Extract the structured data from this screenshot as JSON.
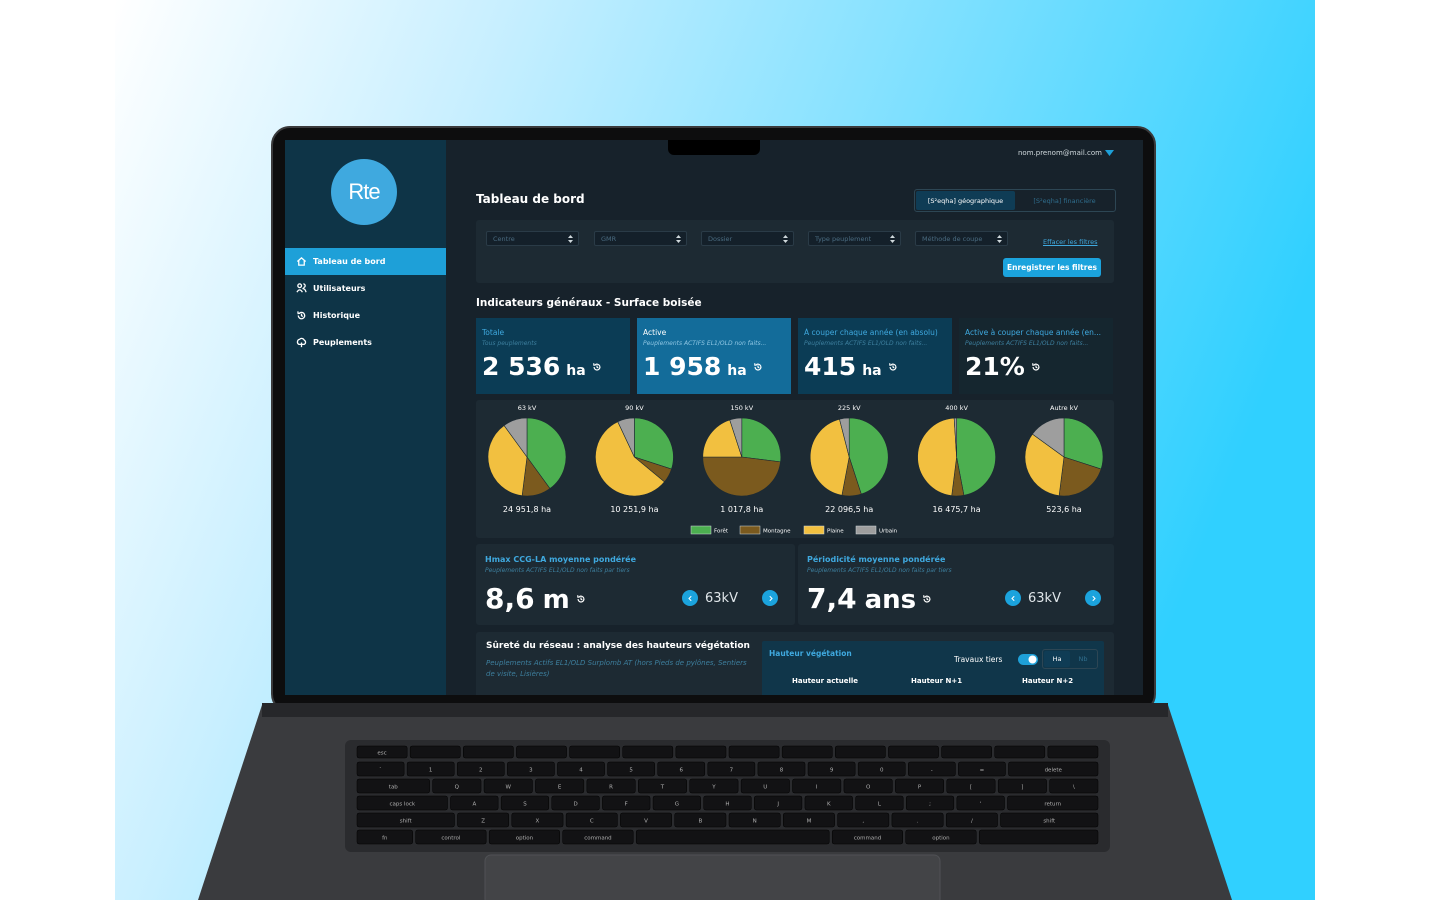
{
  "topbar": {
    "user_email": "nom.prenom@mail.com"
  },
  "sidebar": {
    "logo": "Rte",
    "nav": [
      {
        "label": "Tableau de bord",
        "active": true
      },
      {
        "label": "Utilisateurs",
        "active": false
      },
      {
        "label": "Historique",
        "active": false
      },
      {
        "label": "Peuplements",
        "active": false
      }
    ]
  },
  "header": {
    "title": "Tableau de bord",
    "view_toggle": [
      {
        "label": "[S²eqha] géographique",
        "active": true
      },
      {
        "label": "[S²eqha] financière",
        "active": false
      }
    ]
  },
  "filters": {
    "dropdowns": [
      "Centre",
      "GMR",
      "Dossier",
      "Type peuplement",
      "Méthode de coupe"
    ],
    "clear": "Effacer les filtres",
    "save": "Enregistrer les filtres"
  },
  "indicators": {
    "title": "Indicateurs généraux - Surface boisée",
    "cards": [
      {
        "title": "Totale",
        "subtitle": "Tous peuplements",
        "value": "2 536",
        "unit": "ha",
        "color": "#0b3c55"
      },
      {
        "title": "Active",
        "subtitle": "Peuplements ACTIFS EL1/OLD non faits...",
        "value": "1 958",
        "unit": "ha",
        "color": "#136c9a"
      },
      {
        "title": "À couper chaque année (en absolu)",
        "subtitle": "Peuplements ACTIFS EL1/OLD non faits...",
        "value": "415",
        "unit": "ha",
        "color": "#0b3c55"
      },
      {
        "title": "Active à couper chaque année (en...",
        "subtitle": "Peuplements ACTIFS EL1/OLD non faits...",
        "value": "21%",
        "color": "#15262f"
      }
    ]
  },
  "pies": {
    "legend": [
      {
        "name": "Forêt",
        "color": "#4caf50"
      },
      {
        "name": "Montagne",
        "color": "#7b5a1e"
      },
      {
        "name": "Plaine",
        "color": "#f2c040"
      },
      {
        "name": "Urbain",
        "color": "#9e9e9e"
      }
    ],
    "charts": [
      {
        "label": "63 kV",
        "total": "24 951,8 ha",
        "values": [
          40,
          12,
          38,
          10
        ]
      },
      {
        "label": "90 kV",
        "total": "10 251,9 ha",
        "values": [
          30,
          6,
          57,
          7
        ]
      },
      {
        "label": "150 kV",
        "total": "1 017,8 ha",
        "values": [
          27,
          48,
          20,
          5
        ]
      },
      {
        "label": "225 kV",
        "total": "22 096,5 ha",
        "values": [
          45,
          8,
          43,
          4
        ]
      },
      {
        "label": "400 kV",
        "total": "16 475,7 ha",
        "values": [
          47,
          5,
          47,
          1
        ]
      },
      {
        "label": "Autre kV",
        "total": "523,6 ha",
        "values": [
          30,
          22,
          33,
          15
        ]
      }
    ]
  },
  "metrics": [
    {
      "title": "Hmax CCG-LA moyenne pondérée",
      "subtitle": "Peuplements ACTIFS EL1/OLD non faits par tiers",
      "value": "8,6",
      "unit": "m",
      "selector": "63kV"
    },
    {
      "title": "Périodicité moyenne pondérée",
      "subtitle": "Peuplements ACTIFS EL1/OLD non faits par tiers",
      "value": "7,4",
      "unit": "ans",
      "selector": "63kV"
    }
  ],
  "safety": {
    "title": "Sûreté du réseau : analyse des hauteurs végétation",
    "subtitle": "Peuplements Actifs EL1/OLD Surplomb AT (hors Pieds de pylônes, Sentiers de visite, Lisières)",
    "panel": {
      "title": "Hauteur végétation",
      "switch": "Travaux tiers",
      "toggle": [
        "Ha",
        "Nb"
      ],
      "columns": [
        "Hauteur actuelle",
        "Hauteur N+1",
        "Hauteur N+2"
      ]
    }
  },
  "keyboard": {
    "esc": "esc",
    "rows": [
      [
        "`",
        "1",
        "2",
        "3",
        "4",
        "5",
        "6",
        "7",
        "8",
        "9",
        "0",
        "-",
        "=",
        "delete"
      ],
      [
        "tab",
        "Q",
        "W",
        "E",
        "R",
        "T",
        "Y",
        "U",
        "I",
        "O",
        "P",
        "[",
        "]",
        "\\"
      ],
      [
        "caps lock",
        "A",
        "S",
        "D",
        "F",
        "G",
        "H",
        "J",
        "K",
        "L",
        ";",
        "'",
        "return"
      ],
      [
        "shift",
        "Z",
        "X",
        "C",
        "V",
        "B",
        "N",
        "M",
        ",",
        ".",
        "/",
        "shift"
      ],
      [
        "fn",
        "control",
        "option",
        "command",
        "command",
        "option"
      ]
    ]
  }
}
